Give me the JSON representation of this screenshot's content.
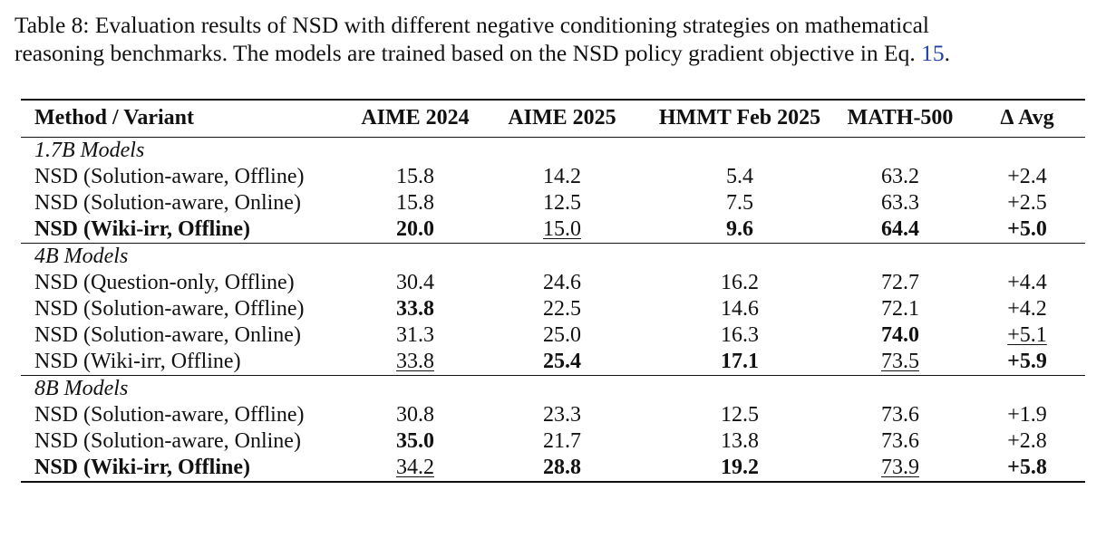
{
  "caption": {
    "text": "Table 8: Evaluation results of NSD with different negative conditioning strategies on mathematical reasoning benchmarks. The models are trained based on the NSD policy gradient objective in Eq. ",
    "line1": "Table 8: Evaluation results of NSD with different negative conditioning strategies on mathematical",
    "line2_prefix": "reasoning benchmarks. The models are trained based on the NSD policy gradient objective in Eq. ",
    "eq_ref": "15",
    "line2_suffix": "."
  },
  "table": {
    "headers": [
      "Method / Variant",
      "AIME 2024",
      "AIME 2025",
      "HMMT Feb 2025",
      "MATH-500",
      "Δ Avg"
    ],
    "groups": [
      {
        "label": "1.7B Models",
        "rows": [
          {
            "method": "NSD (Solution-aware, Offline)",
            "bold": false,
            "cells": [
              {
                "v": "15.8"
              },
              {
                "v": "14.2"
              },
              {
                "v": "5.4"
              },
              {
                "v": "63.2"
              },
              {
                "v": "+2.4"
              }
            ]
          },
          {
            "method": "NSD (Solution-aware, Online)",
            "bold": false,
            "cells": [
              {
                "v": "15.8"
              },
              {
                "v": "12.5"
              },
              {
                "v": "7.5"
              },
              {
                "v": "63.3"
              },
              {
                "v": "+2.5"
              }
            ]
          },
          {
            "method": "NSD (Wiki-irr, Offline)",
            "bold": true,
            "cells": [
              {
                "v": "20.0",
                "b": true
              },
              {
                "v": "15.0",
                "u": true
              },
              {
                "v": "9.6",
                "b": true
              },
              {
                "v": "64.4",
                "b": true
              },
              {
                "v": "+5.0",
                "b": true
              }
            ]
          }
        ]
      },
      {
        "label": "4B Models",
        "rows": [
          {
            "method": "NSD (Question-only, Offline)",
            "bold": false,
            "cells": [
              {
                "v": "30.4"
              },
              {
                "v": "24.6"
              },
              {
                "v": "16.2"
              },
              {
                "v": "72.7"
              },
              {
                "v": "+4.4"
              }
            ]
          },
          {
            "method": "NSD (Solution-aware, Offline)",
            "bold": false,
            "cells": [
              {
                "v": "33.8",
                "b": true
              },
              {
                "v": "22.5"
              },
              {
                "v": "14.6"
              },
              {
                "v": "72.1"
              },
              {
                "v": "+4.2"
              }
            ]
          },
          {
            "method": "NSD (Solution-aware, Online)",
            "bold": false,
            "cells": [
              {
                "v": "31.3"
              },
              {
                "v": "25.0"
              },
              {
                "v": "16.3"
              },
              {
                "v": "74.0",
                "b": true
              },
              {
                "v": "+5.1",
                "u": true
              }
            ]
          },
          {
            "method": "NSD (Wiki-irr, Offline)",
            "bold": false,
            "cells": [
              {
                "v": "33.8",
                "u": true
              },
              {
                "v": "25.4",
                "b": true
              },
              {
                "v": "17.1",
                "b": true
              },
              {
                "v": "73.5",
                "u": true
              },
              {
                "v": "+5.9",
                "b": true
              }
            ]
          }
        ]
      },
      {
        "label": "8B Models",
        "rows": [
          {
            "method": "NSD (Solution-aware, Offline)",
            "bold": false,
            "cells": [
              {
                "v": "30.8"
              },
              {
                "v": "23.3"
              },
              {
                "v": "12.5"
              },
              {
                "v": "73.6"
              },
              {
                "v": "+1.9"
              }
            ]
          },
          {
            "method": "NSD (Solution-aware, Online)",
            "bold": false,
            "cells": [
              {
                "v": "35.0",
                "b": true
              },
              {
                "v": "21.7"
              },
              {
                "v": "13.8"
              },
              {
                "v": "73.6"
              },
              {
                "v": "+2.8"
              }
            ]
          },
          {
            "method": "NSD (Wiki-irr, Offline)",
            "bold": true,
            "cells": [
              {
                "v": "34.2",
                "u": true
              },
              {
                "v": "28.8",
                "b": true
              },
              {
                "v": "19.2",
                "b": true
              },
              {
                "v": "73.9",
                "u": true
              },
              {
                "v": "+5.8",
                "b": true
              }
            ]
          }
        ]
      }
    ]
  },
  "colors": {
    "text": "#111111",
    "reference_link": "#1f3fa8"
  }
}
